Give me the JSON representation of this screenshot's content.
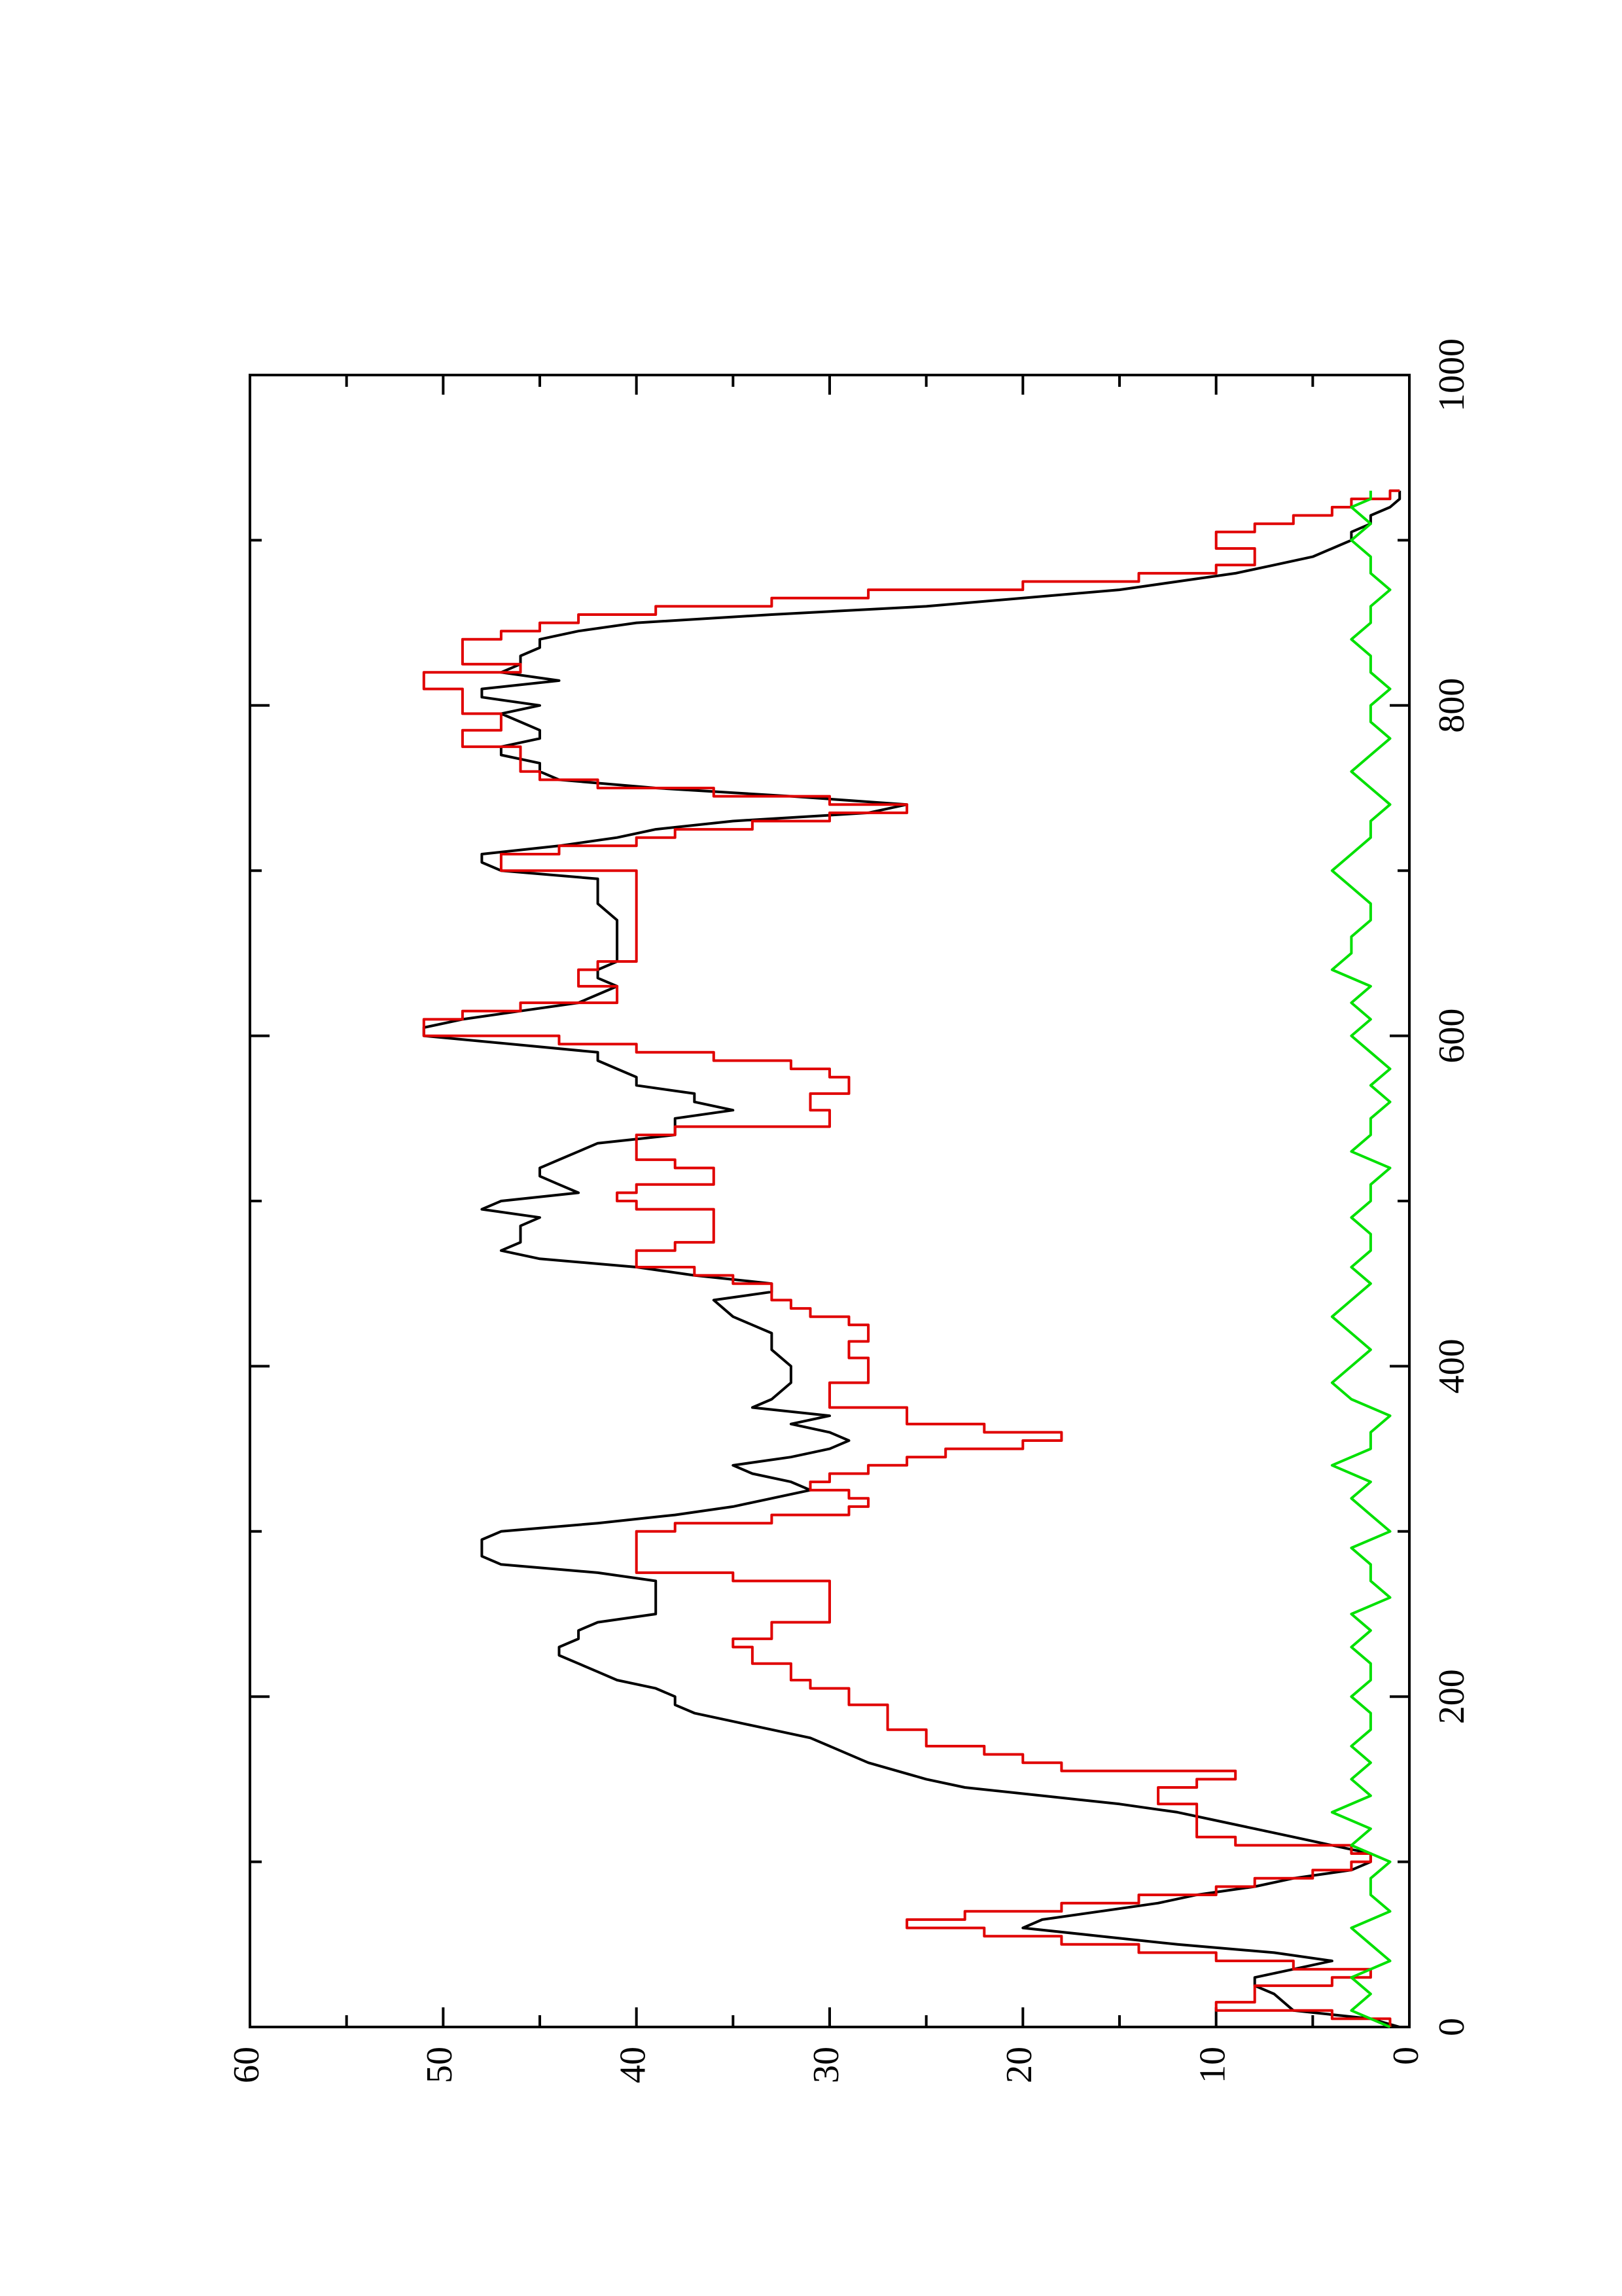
{
  "chart_data": {
    "type": "line",
    "orientation": "rotated-90-clockwise",
    "title": "",
    "xlabel": "",
    "ylabel": "",
    "xlim": [
      0,
      1000
    ],
    "ylim": [
      0,
      60
    ],
    "x_ticks": [
      "0",
      "200",
      "400",
      "600",
      "800",
      "1000"
    ],
    "y_ticks": [
      "0",
      "10",
      "20",
      "30",
      "40",
      "50",
      "60"
    ],
    "grid": false,
    "legend": "none",
    "colors": {
      "series_black": "#000000",
      "series_red": "#e00000",
      "series_green": "#00e000"
    },
    "series": [
      {
        "color": "#000000",
        "style": "smooth",
        "x": [
          0,
          5,
          10,
          20,
          25,
          30,
          35,
          40,
          45,
          50,
          55,
          60,
          65,
          70,
          75,
          80,
          85,
          90,
          95,
          100,
          105,
          110,
          115,
          120,
          125,
          130,
          135,
          140,
          145,
          150,
          160,
          170,
          175,
          180,
          185,
          190,
          195,
          200,
          205,
          210,
          215,
          220,
          225,
          230,
          235,
          240,
          245,
          250,
          255,
          260,
          265,
          270,
          275,
          280,
          285,
          290,
          295,
          300,
          305,
          310,
          315,
          320,
          325,
          330,
          335,
          340,
          345,
          350,
          355,
          360,
          365,
          370,
          375,
          380,
          390,
          400,
          410,
          420,
          430,
          440,
          445,
          450,
          455,
          460,
          465,
          470,
          475,
          480,
          485,
          490,
          495,
          500,
          505,
          510,
          515,
          520,
          525,
          530,
          535,
          540,
          545,
          550,
          555,
          560,
          565,
          570,
          575,
          580,
          585,
          590,
          600,
          605,
          610,
          615,
          620,
          625,
          630,
          635,
          640,
          645,
          650,
          660,
          670,
          680,
          690,
          695,
          700,
          705,
          710,
          715,
          720,
          725,
          730,
          735,
          740,
          745,
          750,
          755,
          760,
          765,
          770,
          775,
          780,
          785,
          790,
          795,
          800,
          805,
          810,
          815,
          820,
          825,
          830,
          835,
          840,
          845,
          850,
          855,
          860,
          865,
          870,
          875,
          880,
          885,
          890,
          895,
          900,
          905,
          910,
          915,
          920,
          925,
          930
        ],
        "y": [
          0.5,
          2,
          6,
          7,
          8,
          8,
          6,
          4,
          7,
          12,
          16,
          20,
          19,
          16,
          13,
          11,
          8,
          6,
          3,
          2,
          2,
          4,
          6,
          8,
          10,
          12,
          15,
          19,
          23,
          25,
          28,
          30,
          31,
          33,
          35,
          37,
          38,
          38,
          39,
          41,
          42,
          43,
          44,
          44,
          43,
          43,
          42,
          39,
          39,
          39,
          39,
          39,
          42,
          47,
          48,
          48,
          48,
          47,
          42,
          38,
          35,
          33,
          31,
          32,
          34,
          35,
          32,
          30,
          29,
          30,
          32,
          30,
          34,
          33,
          32,
          32,
          33,
          33,
          35,
          36,
          33,
          33,
          37,
          40,
          45,
          47,
          46,
          46,
          46,
          45,
          48,
          47,
          43,
          44,
          45,
          45,
          44,
          43,
          42,
          38,
          38,
          38,
          35,
          37,
          37,
          40,
          40,
          41,
          42,
          42,
          51,
          51,
          49,
          46,
          43,
          42,
          41,
          42,
          42,
          41,
          41,
          41,
          41,
          42,
          42,
          42,
          47,
          48,
          48,
          44,
          41,
          39,
          35,
          28,
          26,
          32,
          39,
          44,
          45,
          45,
          47,
          47,
          45,
          45,
          46,
          47,
          45,
          48,
          48,
          44,
          47,
          46,
          46,
          45,
          45,
          43,
          40,
          33,
          25,
          20,
          15,
          12,
          9,
          7,
          5,
          4,
          3,
          3,
          2,
          2,
          1,
          0.5,
          0.5
        ]
      },
      {
        "color": "#e00000",
        "style": "step",
        "x": [
          0,
          5,
          10,
          15,
          20,
          25,
          30,
          35,
          40,
          45,
          50,
          55,
          60,
          65,
          70,
          75,
          80,
          85,
          90,
          95,
          100,
          105,
          110,
          115,
          120,
          125,
          130,
          135,
          140,
          145,
          150,
          155,
          160,
          165,
          170,
          175,
          180,
          185,
          190,
          195,
          200,
          205,
          210,
          215,
          220,
          225,
          230,
          235,
          240,
          245,
          250,
          255,
          260,
          265,
          270,
          275,
          280,
          285,
          290,
          295,
          300,
          305,
          310,
          315,
          320,
          325,
          330,
          335,
          340,
          345,
          350,
          355,
          360,
          365,
          370,
          375,
          380,
          385,
          390,
          395,
          400,
          405,
          410,
          415,
          420,
          425,
          430,
          435,
          440,
          445,
          450,
          455,
          460,
          465,
          470,
          475,
          480,
          485,
          490,
          495,
          500,
          505,
          510,
          515,
          520,
          525,
          530,
          535,
          540,
          545,
          550,
          555,
          560,
          565,
          570,
          575,
          580,
          585,
          590,
          595,
          600,
          605,
          610,
          615,
          620,
          625,
          630,
          635,
          640,
          645,
          650,
          660,
          670,
          680,
          690,
          700,
          705,
          710,
          715,
          720,
          725,
          730,
          735,
          740,
          745,
          750,
          755,
          760,
          765,
          770,
          775,
          780,
          785,
          790,
          795,
          800,
          805,
          810,
          815,
          820,
          825,
          830,
          835,
          840,
          845,
          850,
          855,
          860,
          865,
          870,
          875,
          880,
          885,
          890,
          895,
          900,
          905,
          910,
          915,
          920,
          925,
          930
        ],
        "y": [
          1,
          4,
          10,
          8,
          8,
          4,
          2,
          6,
          10,
          14,
          18,
          22,
          26,
          23,
          18,
          14,
          10,
          8,
          5,
          3,
          2,
          3,
          9,
          11,
          11,
          11,
          11,
          13,
          13,
          11,
          9,
          18,
          20,
          22,
          25,
          25,
          27,
          27,
          27,
          29,
          29,
          31,
          32,
          32,
          34,
          34,
          35,
          33,
          33,
          30,
          30,
          30,
          30,
          30,
          35,
          40,
          40,
          40,
          40,
          40,
          38,
          33,
          29,
          28,
          29,
          31,
          30,
          28,
          26,
          24,
          20,
          18,
          22,
          26,
          26,
          30,
          30,
          30,
          28,
          28,
          28,
          29,
          29,
          28,
          28,
          29,
          31,
          32,
          33,
          33,
          35,
          37,
          40,
          40,
          38,
          36,
          36,
          36,
          36,
          40,
          41,
          40,
          36,
          36,
          38,
          40,
          40,
          40,
          38,
          30,
          30,
          31,
          31,
          29,
          29,
          30,
          32,
          36,
          40,
          44,
          51,
          51,
          49,
          46,
          41,
          41,
          43,
          43,
          42,
          40,
          40,
          40,
          40,
          40,
          40,
          47,
          47,
          44,
          40,
          38,
          34,
          30,
          26,
          30,
          36,
          42,
          45,
          46,
          46,
          46,
          49,
          49,
          47,
          47,
          49,
          49,
          49,
          51,
          51,
          46,
          49,
          49,
          49,
          47,
          45,
          43,
          39,
          33,
          28,
          20,
          14,
          10,
          8,
          8,
          10,
          10,
          8,
          6,
          4,
          3,
          1,
          0.5
        ]
      },
      {
        "color": "#00e000",
        "style": "noise",
        "x": [
          0,
          10,
          20,
          30,
          40,
          50,
          60,
          70,
          80,
          90,
          100,
          110,
          120,
          130,
          140,
          150,
          160,
          170,
          180,
          190,
          200,
          210,
          220,
          230,
          240,
          250,
          260,
          270,
          280,
          290,
          300,
          310,
          320,
          330,
          340,
          350,
          360,
          370,
          380,
          390,
          400,
          410,
          420,
          430,
          440,
          450,
          460,
          470,
          480,
          490,
          500,
          510,
          520,
          530,
          540,
          550,
          560,
          570,
          580,
          590,
          600,
          610,
          620,
          630,
          640,
          650,
          660,
          670,
          680,
          690,
          700,
          710,
          720,
          730,
          740,
          750,
          760,
          770,
          780,
          790,
          800,
          810,
          820,
          830,
          840,
          850,
          860,
          870,
          880,
          890,
          900,
          910,
          920,
          925,
          930
        ],
        "y": [
          1,
          3,
          2,
          3,
          1,
          2,
          3,
          1,
          2,
          2,
          1,
          3,
          2,
          4,
          2,
          3,
          2,
          3,
          2,
          2,
          3,
          2,
          2,
          3,
          2,
          3,
          1,
          2,
          2,
          3,
          1,
          2,
          3,
          2,
          4,
          2,
          2,
          1,
          3,
          4,
          3,
          2,
          3,
          4,
          3,
          2,
          3,
          2,
          2,
          3,
          2,
          2,
          1,
          3,
          2,
          2,
          1,
          2,
          1,
          2,
          3,
          2,
          3,
          2,
          4,
          3,
          3,
          2,
          2,
          3,
          4,
          3,
          2,
          2,
          1,
          2,
          3,
          2,
          1,
          2,
          2,
          1,
          2,
          2,
          3,
          2,
          2,
          1,
          2,
          2,
          3,
          2,
          3,
          2,
          2
        ]
      }
    ]
  }
}
